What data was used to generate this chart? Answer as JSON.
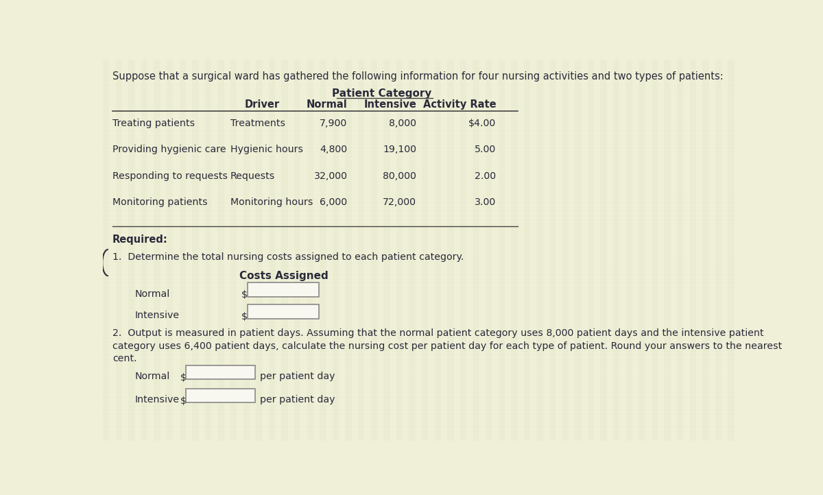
{
  "title": "Suppose that a surgical ward has gathered the following information for four nursing activities and two types of patients:",
  "patient_category_label": "Patient Category",
  "col_headers": [
    "Driver",
    "Normal",
    "Intensive",
    "Activity Rate"
  ],
  "activities": [
    {
      "name": "Treating patients",
      "driver": "Treatments",
      "normal": "7,900",
      "intensive": "8,000",
      "rate": "$4.00"
    },
    {
      "name": "Providing hygienic care",
      "driver": "Hygienic hours",
      "normal": "4,800",
      "intensive": "19,100",
      "rate": "5.00"
    },
    {
      "name": "Responding to requests",
      "driver": "Requests",
      "normal": "32,000",
      "intensive": "80,000",
      "rate": "2.00"
    },
    {
      "name": "Monitoring patients",
      "driver": "Monitoring hours",
      "normal": "6,000",
      "intensive": "72,000",
      "rate": "3.00"
    }
  ],
  "required_label": "Required:",
  "q1_text": "1.  Determine the total nursing costs assigned to each patient category.",
  "costs_assigned_label": "Costs Assigned",
  "normal_label": "Normal",
  "intensive_label": "Intensive",
  "dollar_sign": "$",
  "q2_text_line1": "2.  Output is measured in patient days. Assuming that the normal patient category uses 8,000 patient days and the intensive patient",
  "q2_text_line2": "category uses 6,400 patient days, calculate the nursing cost per patient day for each type of patient. Round your answers to the nearest",
  "q2_text_line3": "cent.",
  "per_patient_day": "per patient day",
  "bg_color_light": "#f0f0d8",
  "bg_color_stripe": "#e8e8c8",
  "text_color": "#2a2a3a",
  "line_color": "#555555",
  "header_line_color": "#444444",
  "input_box_color": "#f8f8f0",
  "input_box_border": "#888888",
  "bold_text_color": "#1a1a2a"
}
